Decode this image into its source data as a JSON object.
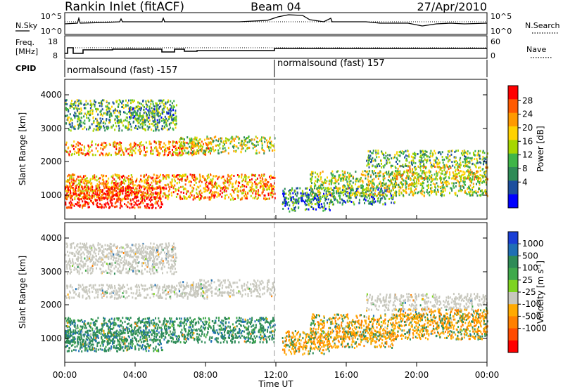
{
  "header": {
    "station": "Rankin Inlet (fitACF)",
    "beam": "Beam 04",
    "date": "27/Apr/2010"
  },
  "noise_panel": {
    "left_label": "N.Sky",
    "left_ticks": [
      "10^5",
      "10^0"
    ],
    "right_ticks": [
      "10^5",
      "10^0"
    ],
    "right_label": "N.Search"
  },
  "freq_panel": {
    "left_label_line1": "Freq.",
    "left_label_line2": "[MHz]",
    "left_ticks": [
      "18",
      "8"
    ],
    "right_ticks": [
      "60",
      "0"
    ],
    "right_label": "Nave"
  },
  "cpid_panel": {
    "label": "CPID",
    "segments": [
      "normalsound (fast) -157",
      "normalsound (fast) 157"
    ]
  },
  "power_panel": {
    "ylabel": "Slant Range [km]",
    "yticks": [
      "4000",
      "3000",
      "2000",
      "1000"
    ],
    "cbar_label": "Power [dB]",
    "cbar_ticks": [
      "28",
      "24",
      "20",
      "16",
      "12",
      "8",
      "4"
    ],
    "cbar_colors": [
      "#ff0000",
      "#ff5a00",
      "#ff9a00",
      "#ffd200",
      "#a6d600",
      "#3fb548",
      "#2e8b57",
      "#1c4f9e",
      "#0000ff"
    ]
  },
  "velocity_panel": {
    "ylabel": "Slant Range [km]",
    "yticks": [
      "4000",
      "3000",
      "2000",
      "1000"
    ],
    "cbar_label": "Velocity [m s",
    "cbar_label_sup": "-1",
    "cbar_label_end": "]",
    "cbar_ticks": [
      "1000",
      "500",
      "100",
      "25",
      "-25",
      "-100",
      "-500",
      "-1000"
    ],
    "cbar_colors": [
      "#1a3fd6",
      "#1f6fb5",
      "#2e8b57",
      "#3fa94b",
      "#7ed321",
      "#c8c8be",
      "#ffaa00",
      "#ff8000",
      "#ff4b00",
      "#ff0000"
    ]
  },
  "xaxis": {
    "ticks": [
      "00:00",
      "04:00",
      "08:00",
      "12:00",
      "16:00",
      "20:00",
      "00:00"
    ],
    "label": "Time UT"
  }
}
